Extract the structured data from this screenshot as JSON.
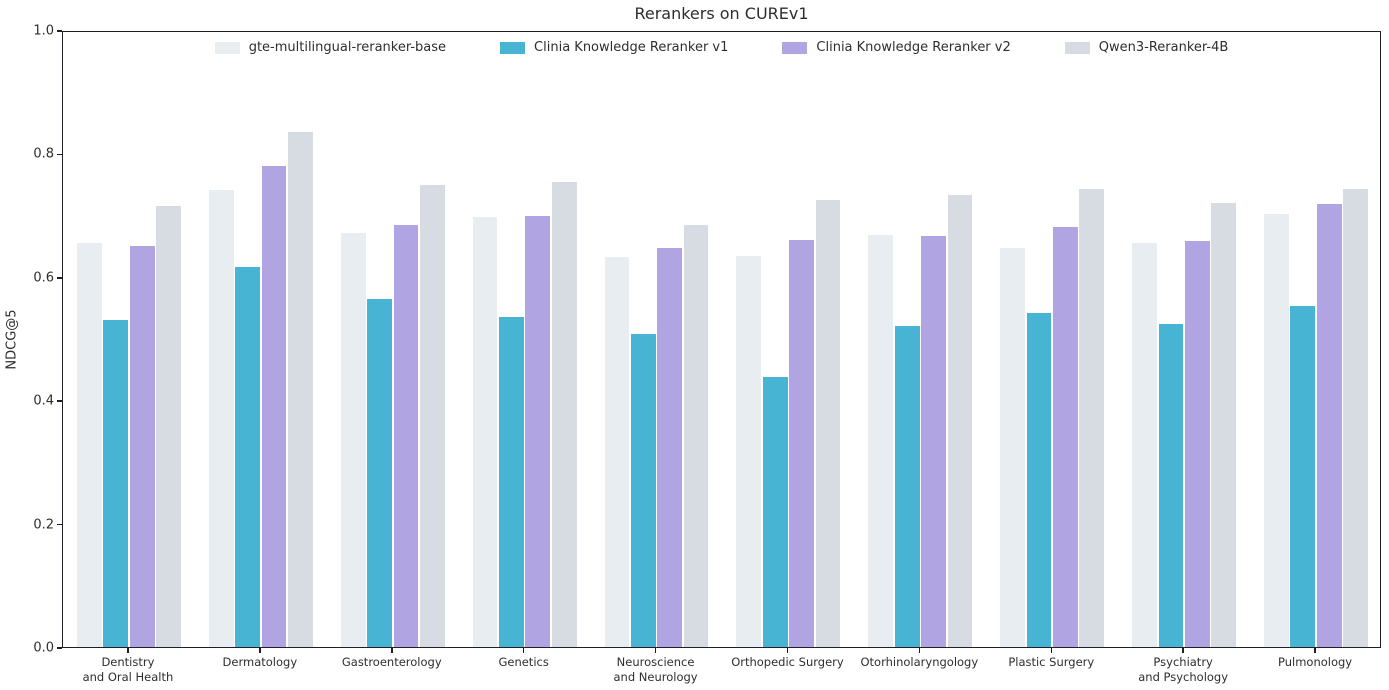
{
  "chart_data": {
    "type": "bar",
    "title": "Rerankers on CUREv1",
    "xlabel": "",
    "ylabel": "NDCG@5",
    "ylim": [
      0.0,
      1.0
    ],
    "yticks": [
      "0.0",
      "0.2",
      "0.4",
      "0.6",
      "0.8",
      "1.0"
    ],
    "grid": false,
    "legend_position": "top-center-inside",
    "categories": [
      "Dentistry\nand Oral Health",
      "Dermatology",
      "Gastroenterology",
      "Genetics",
      "Neuroscience\nand Neurology",
      "Orthopedic Surgery",
      "Otorhinolaryngology",
      "Plastic Surgery",
      "Psychiatry\nand Psychology",
      "Pulmonology"
    ],
    "series": [
      {
        "name": "gte-multilingual-reranker-base",
        "color": "#e8edf2",
        "values": [
          0.656,
          0.742,
          0.672,
          0.698,
          0.633,
          0.635,
          0.67,
          0.649,
          0.656,
          0.703
        ]
      },
      {
        "name": "Clinia Knowledge Reranker v1",
        "color": "#48b4d4",
        "values": [
          0.532,
          0.617,
          0.565,
          0.536,
          0.508,
          0.438,
          0.521,
          0.542,
          0.524,
          0.554
        ]
      },
      {
        "name": "Clinia Knowledge Reranker v2",
        "color": "#b1a4e2",
        "values": [
          0.651,
          0.781,
          0.685,
          0.701,
          0.648,
          0.662,
          0.667,
          0.682,
          0.659,
          0.719
        ]
      },
      {
        "name": "Qwen3-Reranker-4B",
        "color": "#d7dce3",
        "values": [
          0.716,
          0.836,
          0.75,
          0.755,
          0.685,
          0.727,
          0.735,
          0.744,
          0.721,
          0.744
        ]
      }
    ],
    "axis_color": "#1f1f28",
    "text_color": "#2e2e2e",
    "background_color": "#ffffff"
  }
}
